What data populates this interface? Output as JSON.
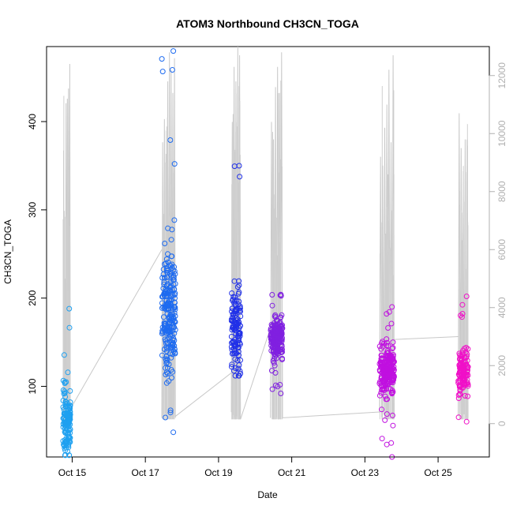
{
  "chart_data": {
    "type": "scatter",
    "title": "ATOM3 Northbound CH3CN_TOGA",
    "xlabel": "Date",
    "ylabel": "CH3CN_TOGA",
    "y2label": "",
    "x_ticks": [
      {
        "x": 15,
        "label": "Oct 15"
      },
      {
        "x": 17,
        "label": "Oct 17"
      },
      {
        "x": 19,
        "label": "Oct 19"
      },
      {
        "x": 21,
        "label": "Oct 21"
      },
      {
        "x": 23,
        "label": "Oct 23"
      },
      {
        "x": 25,
        "label": "Oct 25"
      }
    ],
    "xlim": [
      14.3,
      26.4
    ],
    "ylim": [
      20,
      485
    ],
    "yticks": [
      100,
      200,
      300,
      400
    ],
    "y2lim": [
      -1150,
      13000
    ],
    "y2ticks": [
      0,
      2000,
      4000,
      6000,
      8000,
      10000,
      12000
    ],
    "y2_color": "#b0b0b0",
    "grid": false,
    "legend": "none",
    "flights": [
      {
        "x_start": 14.75,
        "x_end": 14.95,
        "color": "#1ea0f0",
        "y_center": 60,
        "y_spread": 40,
        "y_min": 22,
        "y_max": 188,
        "n": 140,
        "alt_peaks": [
          4350,
          5000,
          11050,
          11200,
          11550,
          12400
        ]
      },
      {
        "x_start": 17.45,
        "x_end": 17.82,
        "color": "#1e6bf0",
        "y_center": 180,
        "y_spread": 65,
        "y_min": 48,
        "y_max": 480,
        "n": 230,
        "alt_peaks": [
          9700,
          10500,
          9300,
          11800,
          12800,
          12200,
          11400,
          12600
        ]
      },
      {
        "x_start": 19.35,
        "x_end": 19.6,
        "color": "#2030e8",
        "y_center": 165,
        "y_spread": 45,
        "y_min": 112,
        "y_max": 350,
        "n": 130,
        "alt_peaks": [
          10400,
          12300,
          11800,
          13000,
          12700
        ]
      },
      {
        "x_start": 20.42,
        "x_end": 20.75,
        "color": "#8020e0",
        "y_center": 155,
        "y_spread": 22,
        "y_min": 92,
        "y_max": 204,
        "n": 200,
        "alt_peaks": [
          10400,
          9800,
          11600,
          12300,
          11400,
          12800
        ]
      },
      {
        "x_start": 23.4,
        "x_end": 23.8,
        "color": "#c010e0",
        "y_center": 118,
        "y_spread": 28,
        "y_min": 20,
        "y_max": 190,
        "n": 230,
        "alt_peaks": [
          9200,
          8900,
          10200,
          11000,
          12200,
          9700,
          12700
        ]
      },
      {
        "x_start": 25.55,
        "x_end": 25.82,
        "color": "#f010c8",
        "y_center": 118,
        "y_spread": 25,
        "y_min": 60,
        "y_max": 202,
        "n": 130,
        "alt_peaks": [
          10700,
          9500,
          8700,
          9800,
          8900
        ]
      }
    ],
    "altitude_links": [
      {
        "x1": 14.95,
        "y1": 500,
        "x2": 17.45,
        "y2": 6000
      },
      {
        "x1": 17.82,
        "y1": 250,
        "x2": 19.35,
        "y2": 1750
      },
      {
        "x1": 19.6,
        "y1": 150,
        "x2": 20.42,
        "y2": 3300
      },
      {
        "x1": 20.75,
        "y1": 200,
        "x2": 23.4,
        "y2": 400
      },
      {
        "x1": 23.8,
        "y1": 2900,
        "x2": 25.55,
        "y2": 3000
      }
    ]
  }
}
